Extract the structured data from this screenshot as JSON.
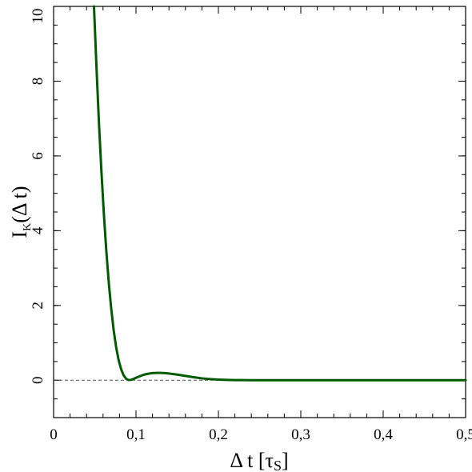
{
  "chart_data": {
    "type": "line",
    "title": "",
    "xlabel": "Δ t [τ",
    "xlabel_sub": "S",
    "xlabel_end": "]",
    "ylabel": "I",
    "ylabel_sub": "K",
    "ylabel_end": "(Δ t)",
    "xlim": [
      0,
      0.5
    ],
    "ylim": [
      -1,
      10
    ],
    "x_ticks": [
      0,
      0.1,
      0.2,
      0.3,
      0.4,
      0.5
    ],
    "x_tick_labels": [
      "0",
      "0,1",
      "0,2",
      "0,3",
      "0,4",
      "0,5"
    ],
    "y_ticks": [
      0,
      2,
      4,
      6,
      8,
      10
    ],
    "y_tick_labels": [
      "0",
      "2",
      "4",
      "6",
      "8",
      "10"
    ],
    "x_minor_step": 0.02,
    "y_minor_step": 0.5,
    "grid": false,
    "reference_line": {
      "y": 0,
      "style": "dashed",
      "color": "#555555"
    },
    "series": [
      {
        "color": "#005a00",
        "x": [
          0.049,
          0.052,
          0.055,
          0.058,
          0.061,
          0.064,
          0.067,
          0.07,
          0.073,
          0.076,
          0.079,
          0.082,
          0.085,
          0.088,
          0.091,
          0.094,
          0.097,
          0.1,
          0.105,
          0.11,
          0.115,
          0.12,
          0.125,
          0.13,
          0.135,
          0.14,
          0.145,
          0.15,
          0.16,
          0.17,
          0.18,
          0.19,
          0.2,
          0.21,
          0.22,
          0.23,
          0.24,
          0.26,
          0.28,
          0.3,
          0.35,
          0.4,
          0.45,
          0.5
        ],
        "y": [
          10.0,
          8.4,
          6.9,
          5.6,
          4.45,
          3.45,
          2.6,
          1.9,
          1.32,
          0.87,
          0.53,
          0.29,
          0.13,
          0.04,
          0.005,
          0.01,
          0.035,
          0.065,
          0.11,
          0.15,
          0.175,
          0.19,
          0.195,
          0.195,
          0.19,
          0.18,
          0.165,
          0.15,
          0.115,
          0.08,
          0.05,
          0.03,
          0.016,
          0.008,
          0.004,
          0.002,
          0.001,
          0.0,
          0.0,
          0.0,
          0.0,
          0.0,
          0.0,
          0.0
        ]
      }
    ]
  }
}
